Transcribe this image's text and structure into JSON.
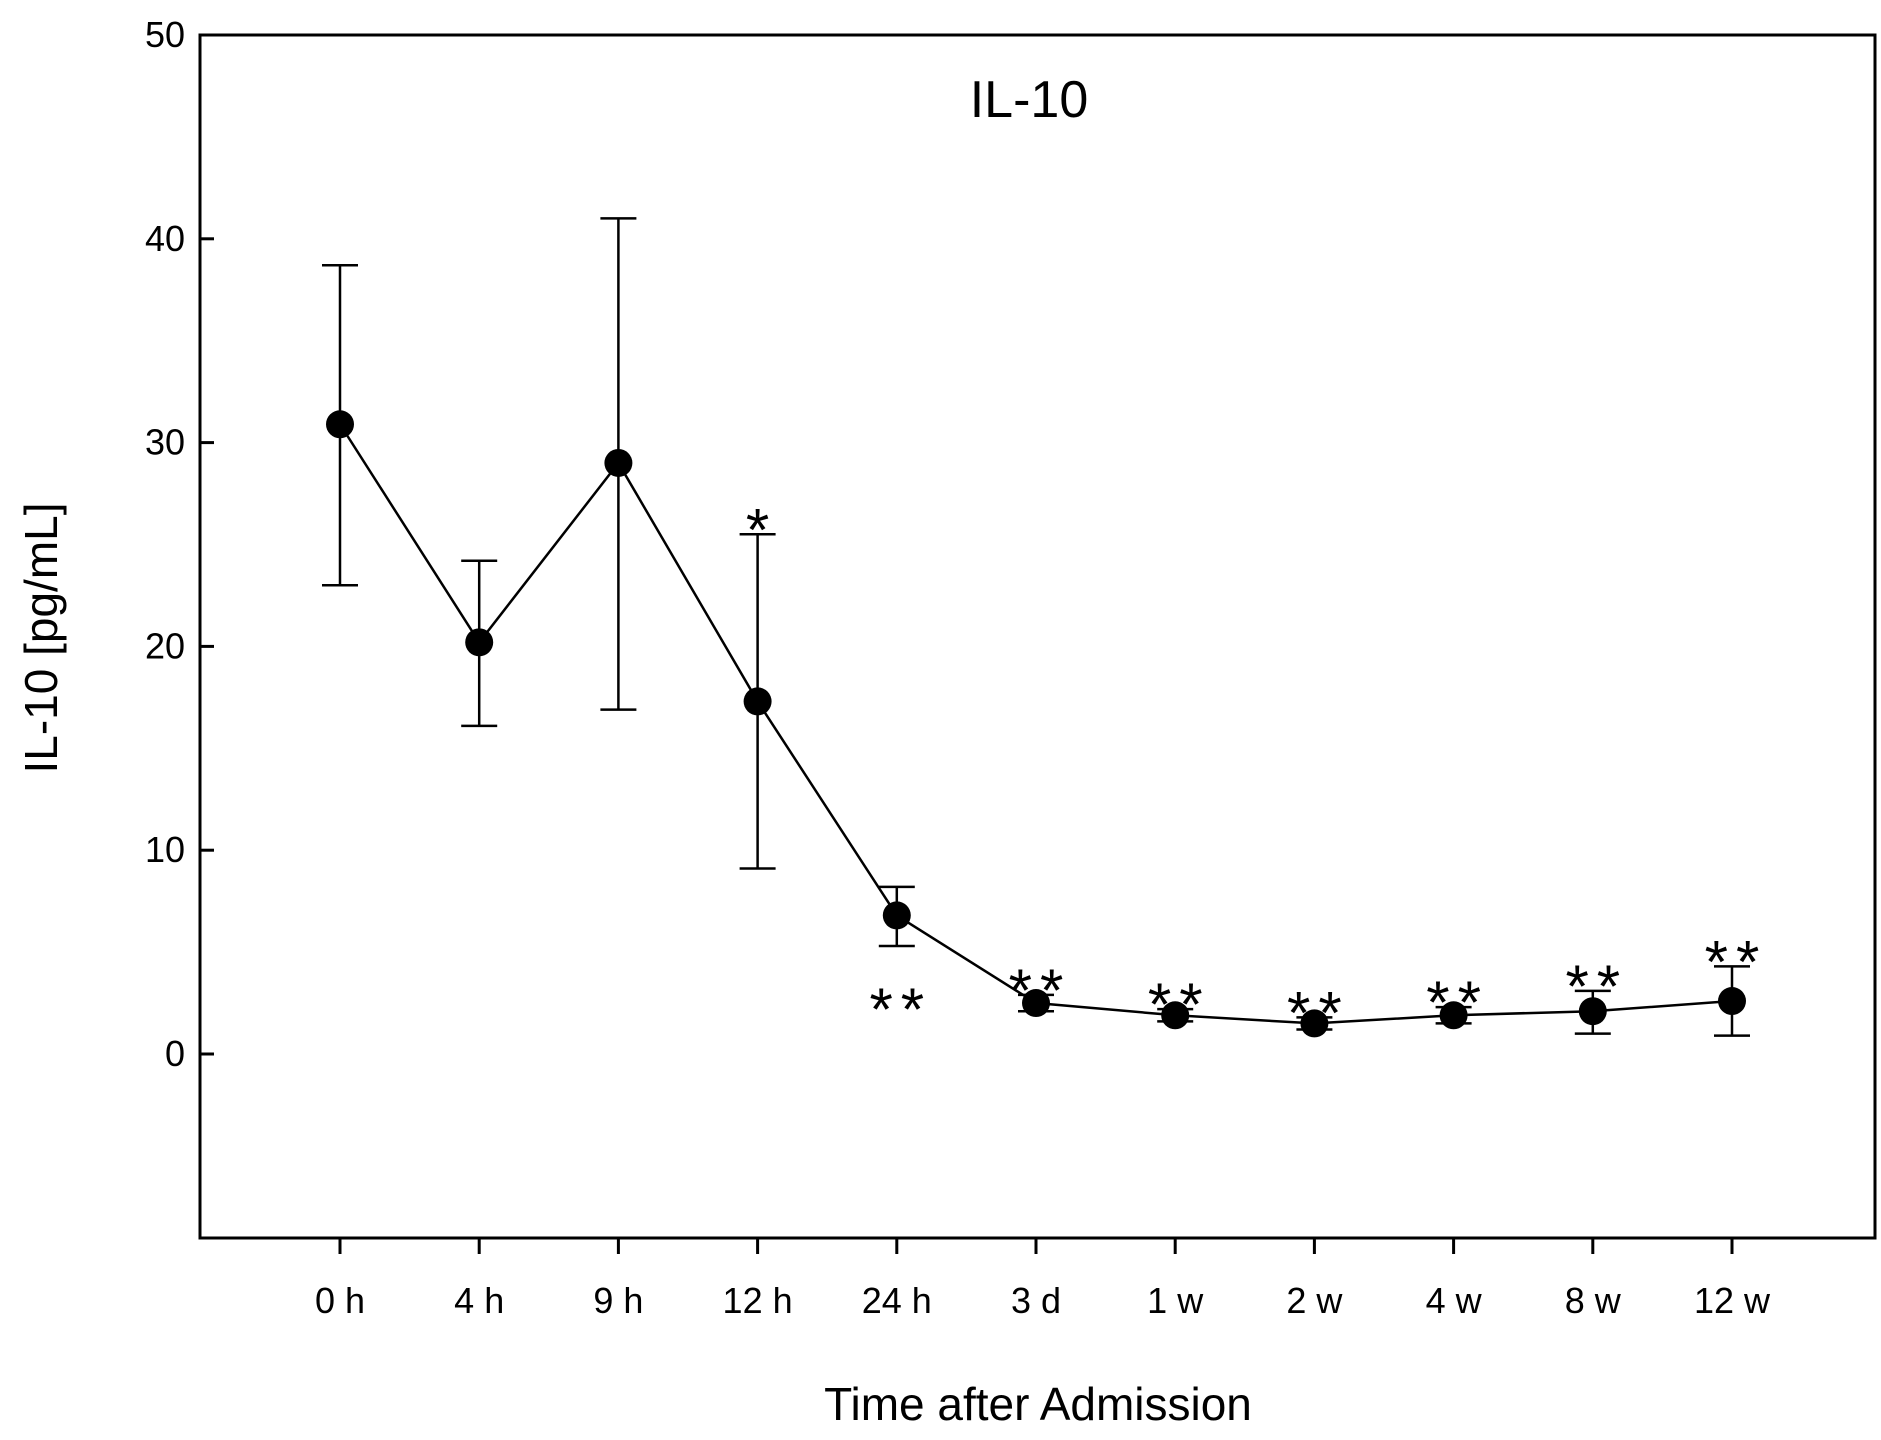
{
  "chart_data": {
    "type": "line",
    "title": "IL-10",
    "xlabel": "Time after Admission",
    "ylabel": "IL-10 [pg/mL]",
    "ylim": [
      -9,
      50
    ],
    "yticks": [
      0,
      10,
      20,
      30,
      40,
      50
    ],
    "yticks_labels": [
      "0",
      "10",
      "20",
      "30",
      "40",
      "50"
    ],
    "categories": [
      "0 h",
      "4 h",
      "9 h",
      "12 h",
      "24 h",
      "3 d",
      "1 w",
      "2 w",
      "4 w",
      "8 w",
      "12 w"
    ],
    "series": [
      {
        "name": "IL-10",
        "values": [
          30.9,
          20.2,
          29.0,
          17.3,
          6.8,
          2.5,
          1.9,
          1.5,
          1.9,
          2.1,
          2.6
        ],
        "error_upper": [
          38.7,
          24.2,
          41.0,
          25.5,
          8.2,
          2.9,
          2.2,
          1.8,
          2.3,
          3.1,
          4.3
        ],
        "error_lower": [
          23.0,
          16.1,
          16.9,
          9.1,
          5.3,
          2.1,
          1.6,
          1.2,
          1.5,
          1.0,
          0.9
        ]
      }
    ],
    "annotations": [
      {
        "category": "12 h",
        "text": "*",
        "position": "above"
      },
      {
        "category": "24 h",
        "text": "**",
        "position": "below"
      },
      {
        "category": "3 d",
        "text": "**",
        "position": "above"
      },
      {
        "category": "1 w",
        "text": "**",
        "position": "above"
      },
      {
        "category": "2 w",
        "text": "**",
        "position": "above"
      },
      {
        "category": "4 w",
        "text": "**",
        "position": "above"
      },
      {
        "category": "8 w",
        "text": "**",
        "position": "above"
      },
      {
        "category": "12 w",
        "text": "**",
        "position": "above"
      }
    ]
  }
}
